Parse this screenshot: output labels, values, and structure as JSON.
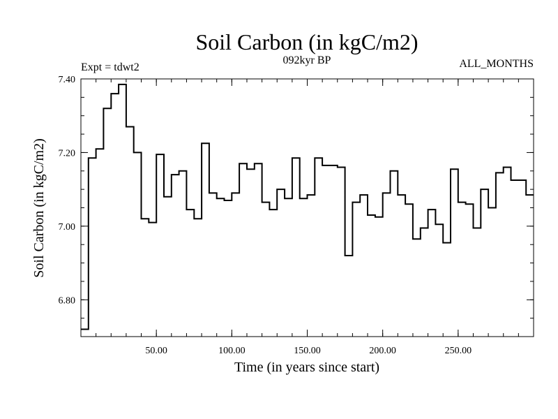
{
  "chart_data": {
    "type": "line",
    "title": "Soil Carbon (in kgC/m2)",
    "subtitle": "092kyr BP",
    "experiment_label": "Expt = tdwt2",
    "period_label": "ALL_MONTHS",
    "xlabel": "Time (in years since start)",
    "ylabel": "Soil Carbon (in kgC/m2)",
    "xlim": [
      0,
      300
    ],
    "ylim": [
      6.7,
      7.4
    ],
    "xticks": [
      50,
      100,
      150,
      200,
      250
    ],
    "xtick_labels": [
      "50.00",
      "100.00",
      "150.00",
      "200.00",
      "250.00"
    ],
    "yticks": [
      6.8,
      7.0,
      7.2,
      7.4
    ],
    "ytick_labels": [
      "6.80",
      "7.00",
      "7.20",
      "7.40"
    ],
    "step_width": 5,
    "series": [
      {
        "name": "Soil Carbon",
        "x": [
          0,
          5,
          10,
          15,
          20,
          25,
          30,
          35,
          40,
          45,
          50,
          55,
          60,
          65,
          70,
          75,
          80,
          85,
          90,
          95,
          100,
          105,
          110,
          115,
          120,
          125,
          130,
          135,
          140,
          145,
          150,
          155,
          160,
          165,
          170,
          175,
          180,
          185,
          190,
          195,
          200,
          205,
          210,
          215,
          220,
          225,
          230,
          235,
          240,
          245,
          250,
          255,
          260,
          265,
          270,
          275,
          280,
          285,
          290,
          295
        ],
        "values": [
          6.72,
          7.185,
          7.21,
          7.32,
          7.36,
          7.385,
          7.27,
          7.2,
          7.02,
          7.01,
          7.195,
          7.08,
          7.14,
          7.15,
          7.045,
          7.02,
          7.225,
          7.09,
          7.075,
          7.07,
          7.09,
          7.17,
          7.155,
          7.17,
          7.065,
          7.045,
          7.1,
          7.075,
          7.185,
          7.075,
          7.085,
          7.185,
          7.165,
          7.165,
          7.16,
          6.92,
          7.065,
          7.085,
          7.03,
          7.025,
          7.09,
          7.15,
          7.085,
          7.06,
          6.965,
          6.995,
          7.045,
          7.005,
          6.955,
          7.155,
          7.065,
          7.06,
          6.995,
          7.1,
          7.05,
          7.145,
          7.16,
          7.125,
          7.125,
          7.085
        ]
      }
    ]
  }
}
